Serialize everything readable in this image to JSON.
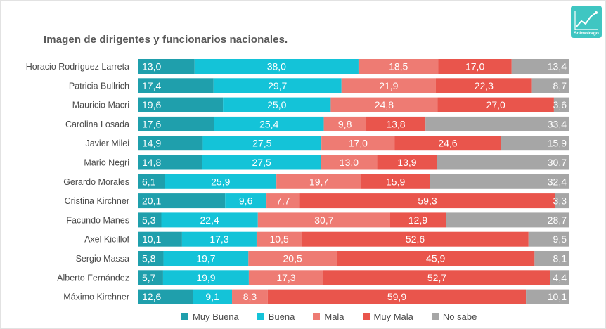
{
  "title": "Imagen de dirigentes y funcionarios nacionales.",
  "logo": {
    "text": "Solmoirago",
    "icon": "trend-chart-icon"
  },
  "chart_data": {
    "type": "bar",
    "orientation": "horizontal",
    "stacked": true,
    "stack_mode": "percent",
    "categories": [
      "Horacio Rodríguez Larreta",
      "Patricia Bullrich",
      "Mauricio Macri",
      "Carolina Losada",
      "Javier Milei",
      "Mario Negri",
      "Gerardo Morales",
      "Cristina Kirchner",
      "Facundo Manes",
      "Axel Kicillof",
      "Sergio Massa",
      "Alberto Fernández",
      "Máximo Kirchner"
    ],
    "series": [
      {
        "name": "Muy Buena",
        "color": "#1f9fac",
        "values": [
          13.0,
          17.4,
          19.6,
          17.6,
          14.9,
          14.8,
          6.1,
          20.1,
          5.3,
          10.1,
          5.8,
          5.7,
          12.6
        ],
        "labels": [
          "13,0",
          "17,4",
          "19,6",
          "17,6",
          "14,9",
          "14,8",
          "6,1",
          "20,1",
          "5,3",
          "10,1",
          "5,8",
          "5,7",
          "12,6"
        ]
      },
      {
        "name": "Buena",
        "color": "#14c3d8",
        "values": [
          38.0,
          29.7,
          25.0,
          25.4,
          27.5,
          27.5,
          25.9,
          9.6,
          22.4,
          17.3,
          19.7,
          19.9,
          9.1
        ],
        "labels": [
          "38,0",
          "29,7",
          "25,0",
          "25,4",
          "27,5",
          "27,5",
          "25,9",
          "9,6",
          "22,4",
          "17,3",
          "19,7",
          "19,9",
          "9,1"
        ]
      },
      {
        "name": "Mala",
        "color": "#ee7b73",
        "values": [
          18.5,
          21.9,
          24.8,
          9.8,
          17.0,
          13.0,
          19.7,
          7.7,
          30.7,
          10.5,
          20.5,
          17.3,
          8.3
        ],
        "labels": [
          "18,5",
          "21,9",
          "24,8",
          "9,8",
          "17,0",
          "13,0",
          "19,7",
          "7,7",
          "30,7",
          "10,5",
          "20,5",
          "17,3",
          "8,3"
        ]
      },
      {
        "name": "Muy Mala",
        "color": "#e9554c",
        "values": [
          17.0,
          22.3,
          27.0,
          13.8,
          24.6,
          13.9,
          15.9,
          59.3,
          12.9,
          52.6,
          45.9,
          52.7,
          59.9
        ],
        "labels": [
          "17,0",
          "22,3",
          "27,0",
          "13,8",
          "24,6",
          "13,9",
          "15,9",
          "59,3",
          "12,9",
          "52,6",
          "45,9",
          "52,7",
          "59,9"
        ]
      },
      {
        "name": "No sabe",
        "color": "#a6a6a6",
        "values": [
          13.4,
          8.7,
          3.6,
          33.4,
          15.9,
          30.7,
          32.4,
          3.3,
          28.7,
          9.5,
          8.1,
          4.4,
          10.1
        ],
        "labels": [
          "13,4",
          "8,7",
          "3,6",
          "33,4",
          "15,9",
          "30,7",
          "32,4",
          "3,3",
          "28,7",
          "9,5",
          "8,1",
          "4,4",
          "10,1"
        ]
      }
    ],
    "legend_position": "bottom",
    "grid": false
  }
}
